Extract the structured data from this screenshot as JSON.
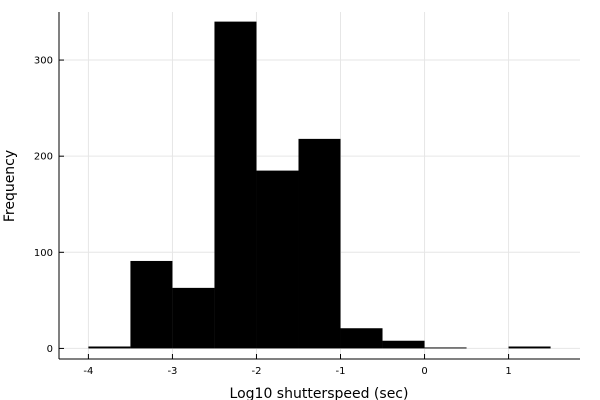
{
  "chart_data": {
    "type": "bar",
    "title": "",
    "xlabel": "Log10 shutterspeed (sec)",
    "ylabel": "Frequency",
    "bin_edges": [
      -4,
      -3.5,
      -3,
      -2.5,
      -2,
      -1.5,
      -1,
      -0.5,
      0,
      0.5,
      1,
      1.5
    ],
    "values": [
      2,
      91,
      63,
      340,
      185,
      218,
      21,
      8,
      1,
      0,
      2
    ],
    "xlim": [
      -4.35,
      1.85
    ],
    "ylim": [
      -11,
      350
    ],
    "xticks": [
      -4,
      -3,
      -2,
      -1,
      0,
      1
    ],
    "yticks": [
      0,
      100,
      200,
      300
    ],
    "grid": true,
    "bar_color": "#000000"
  }
}
